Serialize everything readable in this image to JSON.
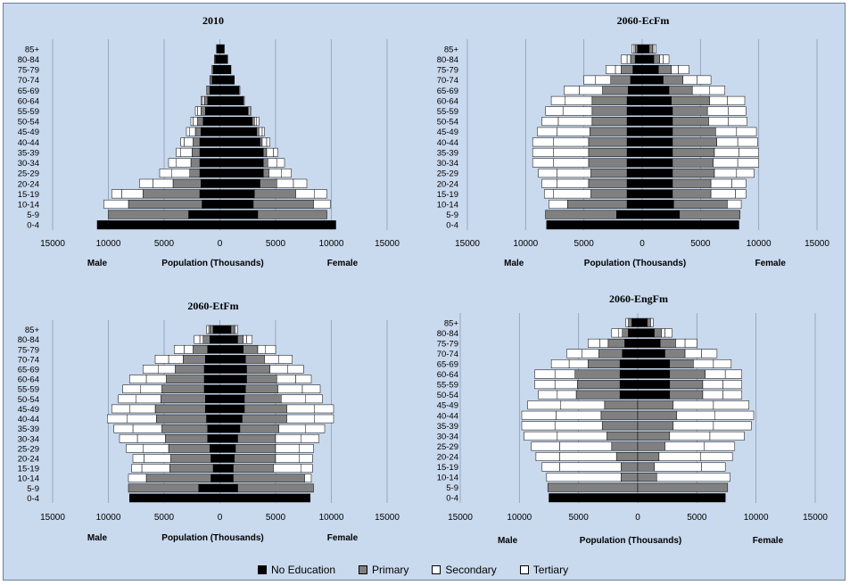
{
  "age_groups": [
    "0-4",
    "5-9",
    "10-14",
    "15-19",
    "20-24",
    "25-29",
    "30-34",
    "35-39",
    "40-44",
    "45-49",
    "50-54",
    "55-59",
    "60-64",
    "65-69",
    "70-74",
    "75-79",
    "80-84",
    "85+"
  ],
  "legend": [
    {
      "label": "No Education",
      "color": "#000000"
    },
    {
      "label": "Primary",
      "color": "#808080"
    },
    {
      "label": "Secondary",
      "color": "#ffffff"
    },
    {
      "label": "Tertiary",
      "color": "#ffffff"
    }
  ],
  "chart_data": [
    {
      "type": "bar",
      "orientation": "horizontal-pyramid",
      "title": "2010",
      "xlabel": "Population (Thousands)",
      "left_label": "Male",
      "right_label": "Female",
      "xlim": [
        -15000,
        15000
      ],
      "ticks": [
        "15000",
        "10000",
        "5000",
        "0",
        "5000",
        "10000",
        "15000"
      ],
      "series": [
        {
          "name": "No Education",
          "male": [
            11000,
            2800,
            1600,
            1800,
            1700,
            1800,
            1800,
            1800,
            1800,
            1700,
            1500,
            1300,
            1100,
            900,
            700,
            600,
            400,
            300
          ],
          "female": [
            10400,
            3400,
            3000,
            3100,
            3600,
            3900,
            3900,
            3900,
            3600,
            3300,
            2900,
            2500,
            2100,
            1700,
            1300,
            1000,
            700,
            400
          ]
        },
        {
          "name": "Primary",
          "male": [
            0,
            7200,
            6600,
            5100,
            2500,
            900,
            800,
            700,
            600,
            500,
            500,
            400,
            300,
            200,
            200,
            100,
            100,
            0
          ],
          "female": [
            0,
            6200,
            5400,
            3700,
            1500,
            500,
            400,
            300,
            200,
            200,
            200,
            100,
            100,
            100,
            0,
            0,
            0,
            0
          ]
        },
        {
          "name": "Secondary",
          "male": [
            0,
            0,
            2200,
            1900,
            1800,
            1600,
            1300,
            1000,
            800,
            500,
            400,
            300,
            200,
            100,
            0,
            0,
            0,
            0
          ],
          "female": [
            0,
            0,
            1500,
            1700,
            1500,
            1100,
            800,
            600,
            400,
            300,
            200,
            100,
            0,
            0,
            0,
            0,
            0,
            0
          ]
        },
        {
          "name": "Tertiary",
          "male": [
            0,
            0,
            0,
            900,
            1200,
            1100,
            700,
            400,
            300,
            300,
            200,
            200,
            100,
            0,
            0,
            0,
            0,
            0
          ],
          "female": [
            0,
            0,
            0,
            1100,
            1200,
            900,
            700,
            400,
            300,
            200,
            200,
            100,
            0,
            0,
            0,
            0,
            0,
            0
          ]
        }
      ]
    },
    {
      "type": "bar",
      "orientation": "horizontal-pyramid",
      "title": "2060-EcFm",
      "xlabel": "Population (Thousands)",
      "left_label": "Male",
      "right_label": "Female",
      "xlim": [
        -15000,
        15000
      ],
      "ticks": [
        "15000",
        "10000",
        "5000",
        "0",
        "5000",
        "10000",
        "15000"
      ],
      "series": [
        {
          "name": "No Education",
          "male": [
            8200,
            2200,
            1300,
            1300,
            1300,
            1300,
            1300,
            1300,
            1300,
            1300,
            1300,
            1300,
            1300,
            1200,
            1000,
            800,
            600,
            400
          ],
          "female": [
            8300,
            3200,
            2700,
            2600,
            2600,
            2600,
            2600,
            2600,
            2600,
            2600,
            2600,
            2600,
            2500,
            2300,
            1800,
            1400,
            1000,
            600
          ]
        },
        {
          "name": "Primary",
          "male": [
            0,
            6100,
            5100,
            3100,
            3300,
            3100,
            3300,
            3300,
            3300,
            3200,
            3000,
            3000,
            3000,
            2200,
            1700,
            1000,
            400,
            200
          ],
          "female": [
            0,
            5200,
            4600,
            3300,
            3300,
            3600,
            3500,
            3600,
            3800,
            3700,
            3100,
            3000,
            3300,
            2000,
            1700,
            1100,
            500,
            300
          ]
        },
        {
          "name": "Secondary",
          "male": [
            0,
            0,
            1600,
            3200,
            2700,
            2900,
            3000,
            3000,
            3000,
            2800,
            2900,
            2500,
            2300,
            2000,
            1300,
            500,
            300,
            100
          ],
          "female": [
            0,
            0,
            1200,
            2100,
            1800,
            1900,
            2100,
            2100,
            1800,
            1800,
            1700,
            1800,
            1500,
            1500,
            1200,
            600,
            300,
            100
          ]
        },
        {
          "name": "Tertiary",
          "male": [
            0,
            0,
            0,
            800,
            1300,
            1600,
            1800,
            1800,
            1800,
            1700,
            1400,
            1500,
            1200,
            1300,
            1000,
            800,
            500,
            200
          ],
          "female": [
            0,
            0,
            0,
            900,
            1200,
            1500,
            1800,
            1700,
            1700,
            1700,
            1600,
            1500,
            1500,
            1300,
            1200,
            900,
            500,
            200
          ]
        }
      ]
    },
    {
      "type": "bar",
      "orientation": "horizontal-pyramid",
      "title": "2060-EtFm",
      "xlabel": "Population (Thousands)",
      "left_label": "Male",
      "right_label": "Female",
      "xlim": [
        -15000,
        15000
      ],
      "ticks": [
        "15000",
        "10000",
        "5000",
        "0",
        "5000",
        "10000",
        "15000"
      ],
      "series": [
        {
          "name": "No Education",
          "male": [
            8100,
            1900,
            800,
            600,
            800,
            900,
            1100,
            1100,
            1200,
            1300,
            1300,
            1400,
            1400,
            1400,
            1300,
            1100,
            900,
            600
          ],
          "female": [
            8100,
            1600,
            1200,
            1200,
            1300,
            1400,
            1600,
            1800,
            2000,
            2200,
            2200,
            2300,
            2400,
            2400,
            2300,
            2100,
            1600,
            1000
          ]
        },
        {
          "name": "Primary",
          "male": [
            0,
            6300,
            5800,
            3900,
            3600,
            3700,
            3800,
            4100,
            4500,
            4500,
            4000,
            3800,
            3400,
            2600,
            2000,
            1300,
            600,
            300
          ],
          "female": [
            0,
            6800,
            6400,
            3600,
            3700,
            3600,
            3400,
            3500,
            4000,
            3800,
            3300,
            2900,
            2700,
            2100,
            1700,
            1300,
            500,
            300
          ]
        },
        {
          "name": "Secondary",
          "male": [
            0,
            0,
            1600,
            2500,
            2400,
            2300,
            2500,
            2600,
            2600,
            2300,
            2200,
            1900,
            1800,
            1500,
            1300,
            800,
            300,
            100
          ],
          "female": [
            0,
            0,
            600,
            2500,
            2100,
            2100,
            2300,
            2400,
            2500,
            2500,
            2200,
            2200,
            1700,
            1600,
            1300,
            700,
            300,
            100
          ]
        },
        {
          "name": "Tertiary",
          "male": [
            0,
            0,
            0,
            900,
            1000,
            1500,
            1600,
            1700,
            1800,
            1600,
            1600,
            1600,
            1500,
            1400,
            1200,
            900,
            500,
            200
          ],
          "female": [
            0,
            0,
            0,
            1000,
            1200,
            1300,
            1600,
            1700,
            1700,
            1700,
            1500,
            1600,
            1400,
            1400,
            1200,
            900,
            500,
            200
          ]
        }
      ]
    },
    {
      "type": "bar",
      "orientation": "horizontal-pyramid",
      "title": "2060-EngFm",
      "xlabel": "Population (Thousands)",
      "left_label": "Male",
      "right_label": "Female",
      "xlim": [
        -15000,
        15000
      ],
      "ticks": [
        "15000",
        "10000",
        "5000",
        "0",
        "5000",
        "10000",
        "15000"
      ],
      "series": [
        {
          "name": "No Education",
          "male": [
            7500,
            0,
            0,
            0,
            0,
            0,
            0,
            0,
            0,
            0,
            1500,
            1500,
            1500,
            1500,
            1300,
            1100,
            800,
            500
          ],
          "female": [
            7400,
            0,
            0,
            0,
            0,
            0,
            0,
            0,
            0,
            0,
            2700,
            2700,
            2700,
            2700,
            2300,
            1900,
            1400,
            800
          ]
        },
        {
          "name": "Primary",
          "male": [
            0,
            7600,
            1400,
            1400,
            1800,
            2200,
            2600,
            3000,
            3100,
            2800,
            3700,
            3600,
            3800,
            2700,
            2000,
            1400,
            500,
            200
          ],
          "female": [
            0,
            7600,
            1600,
            1400,
            1800,
            2300,
            2700,
            3000,
            3300,
            3000,
            2800,
            2800,
            3000,
            2000,
            1700,
            1300,
            600,
            200
          ]
        },
        {
          "name": "Secondary",
          "male": [
            0,
            0,
            6300,
            5200,
            4800,
            4400,
            4200,
            4000,
            3800,
            3700,
            1600,
            1900,
            1700,
            1600,
            1400,
            700,
            300,
            100
          ],
          "female": [
            0,
            0,
            6200,
            4000,
            3500,
            3300,
            3400,
            3400,
            3200,
            3400,
            1700,
            1700,
            1700,
            1700,
            1400,
            800,
            300,
            100
          ]
        },
        {
          "name": "Tertiary",
          "male": [
            0,
            0,
            0,
            1500,
            2000,
            2400,
            2800,
            2800,
            2900,
            2800,
            1600,
            1700,
            1700,
            1500,
            1300,
            1000,
            600,
            200
          ],
          "female": [
            0,
            0,
            0,
            2000,
            2700,
            2600,
            2900,
            3200,
            3300,
            3000,
            1600,
            1600,
            1400,
            1500,
            1300,
            1000,
            600,
            200
          ]
        }
      ]
    }
  ]
}
